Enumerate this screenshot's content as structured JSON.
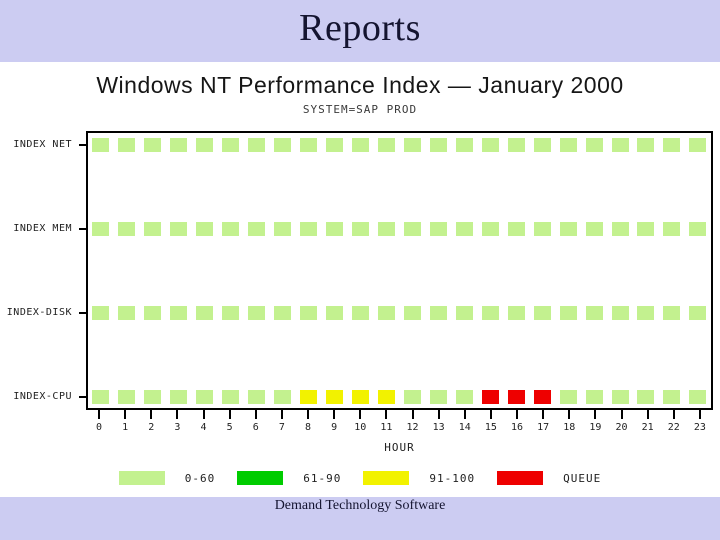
{
  "slide": {
    "title": "Reports",
    "footer": "Demand Technology Software"
  },
  "chart": {
    "title": "Windows NT Performance Index — January 2000",
    "subtitle": "SYSTEM=SAP PROD",
    "xlabel": "HOUR"
  },
  "colors": {
    "banner": "#ccccf2",
    "frame": "#000000",
    "band_0_60": "#c3f18f",
    "band_61_90": "#00cc00",
    "band_91_100": "#f2f200",
    "band_queue": "#ee0000"
  },
  "chart_data": {
    "type": "heatmap",
    "title": "Windows NT Performance Index — January 2000",
    "subtitle": "SYSTEM=SAP PROD",
    "xlabel": "HOUR",
    "x": [
      0,
      1,
      2,
      3,
      4,
      5,
      6,
      7,
      8,
      9,
      10,
      11,
      12,
      13,
      14,
      15,
      16,
      17,
      18,
      19,
      20,
      21,
      22,
      23
    ],
    "rows": [
      {
        "label": "INDEX NET",
        "values": [
          "0-60",
          "0-60",
          "0-60",
          "0-60",
          "0-60",
          "0-60",
          "0-60",
          "0-60",
          "0-60",
          "0-60",
          "0-60",
          "0-60",
          "0-60",
          "0-60",
          "0-60",
          "0-60",
          "0-60",
          "0-60",
          "0-60",
          "0-60",
          "0-60",
          "0-60",
          "0-60",
          "0-60"
        ]
      },
      {
        "label": "INDEX MEM",
        "values": [
          "0-60",
          "0-60",
          "0-60",
          "0-60",
          "0-60",
          "0-60",
          "0-60",
          "0-60",
          "0-60",
          "0-60",
          "0-60",
          "0-60",
          "0-60",
          "0-60",
          "0-60",
          "0-60",
          "0-60",
          "0-60",
          "0-60",
          "0-60",
          "0-60",
          "0-60",
          "0-60",
          "0-60"
        ]
      },
      {
        "label": "INDEX-DISK",
        "values": [
          "0-60",
          "0-60",
          "0-60",
          "0-60",
          "0-60",
          "0-60",
          "0-60",
          "0-60",
          "0-60",
          "0-60",
          "0-60",
          "0-60",
          "0-60",
          "0-60",
          "0-60",
          "0-60",
          "0-60",
          "0-60",
          "0-60",
          "0-60",
          "0-60",
          "0-60",
          "0-60",
          "0-60"
        ]
      },
      {
        "label": "INDEX-CPU",
        "values": [
          "0-60",
          "0-60",
          "0-60",
          "0-60",
          "0-60",
          "0-60",
          "0-60",
          "0-60",
          "91-100",
          "91-100",
          "91-100",
          "91-100",
          "0-60",
          "0-60",
          "0-60",
          "QUEUE",
          "QUEUE",
          "QUEUE",
          "0-60",
          "0-60",
          "0-60",
          "0-60",
          "0-60",
          "0-60"
        ]
      }
    ],
    "legend": [
      {
        "label": "0-60",
        "color": "#c3f18f"
      },
      {
        "label": "61-90",
        "color": "#00cc00"
      },
      {
        "label": "91-100",
        "color": "#f2f200"
      },
      {
        "label": "QUEUE",
        "color": "#ee0000"
      }
    ],
    "legend_position": "bottom",
    "grid": false
  }
}
